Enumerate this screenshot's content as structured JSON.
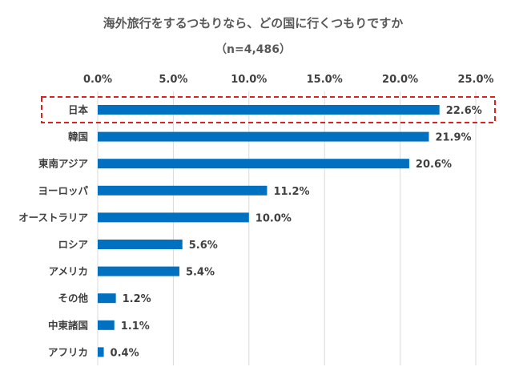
{
  "title": "海外旅行をするつもりなら、どの国に行くつもりですか",
  "subtitle": "（n=4,486）",
  "colors": {
    "bar": "#0070C0",
    "highlight_border": "#E02020",
    "grid": "#D9D9D9",
    "text": "#404040",
    "title": "#595959"
  },
  "chart_data": {
    "type": "bar",
    "orientation": "horizontal",
    "title": "海外旅行をするつもりなら、どの国に行くつもりですか",
    "subtitle": "（n=4,486）",
    "categories": [
      "日本",
      "韓国",
      "東南アジア",
      "ヨーロッパ",
      "オーストラリア",
      "ロシア",
      "アメリカ",
      "その他",
      "中東諸国",
      "アフリカ"
    ],
    "values": [
      22.6,
      21.9,
      20.6,
      11.2,
      10.0,
      5.6,
      5.4,
      1.2,
      1.1,
      0.4
    ],
    "value_labels": [
      "22.6%",
      "21.9%",
      "20.6%",
      "11.2%",
      "10.0%",
      "5.6%",
      "5.4%",
      "1.2%",
      "1.1%",
      "0.4%"
    ],
    "xlim": [
      0,
      25
    ],
    "x_ticks": [
      0,
      5,
      10,
      15,
      20,
      25
    ],
    "x_tick_labels": [
      "0.0%",
      "5.0%",
      "10.0%",
      "15.0%",
      "20.0%",
      "25.0%"
    ],
    "x_axis_position": "top",
    "grid": true,
    "legend": "none",
    "highlighted_category": "日本"
  }
}
